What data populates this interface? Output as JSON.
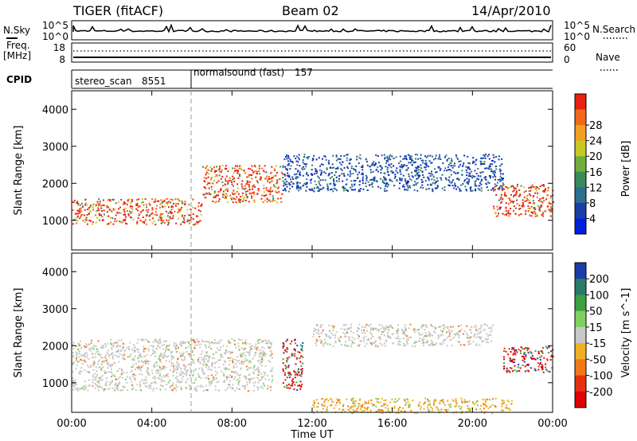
{
  "header": {
    "title": "TIGER (fitACF)",
    "beam": "Beam 02",
    "date": "14/Apr/2010"
  },
  "strips": {
    "nsky_label": "N.Sky",
    "nsky_ticks": [
      "10^5",
      "10^0"
    ],
    "nsearch_label": "N.Search",
    "nsearch_ticks": [
      "10^5",
      "10^0"
    ],
    "freq_label_line1": "Freq.",
    "freq_label_line2": "[MHz]",
    "freq_ticks": [
      "18",
      "8"
    ],
    "nave_label": "Nave",
    "nave_ticks": [
      "60",
      "0"
    ],
    "cpid_label": "CPID",
    "cpid_segments": [
      {
        "name": "stereo_scan",
        "id": "8551",
        "start_hour": 0
      },
      {
        "name": "normalsound (fast)",
        "id": "157",
        "start_hour": 6
      }
    ]
  },
  "chart_data": [
    {
      "type": "heatmap",
      "name": "power",
      "ylabel": "Slant Range [km]",
      "xlabel": "",
      "ylim": [
        200,
        4500
      ],
      "yticks": [
        "1000",
        "2000",
        "3000",
        "4000"
      ],
      "xlim_hours": [
        0,
        24
      ],
      "colorbar": {
        "label": "Power [dB]",
        "ticks": [
          "4",
          "8",
          "12",
          "16",
          "20",
          "24",
          "28"
        ],
        "colors": [
          "#0020e0",
          "#1a3ea8",
          "#2e6e90",
          "#3a8a5a",
          "#6fae3a",
          "#c8c820",
          "#f0a020",
          "#f06818",
          "#e82010"
        ]
      },
      "echo_regions": [
        {
          "t0": 0.0,
          "t1": 6.5,
          "r0": 900,
          "r1": 1600,
          "level": "high"
        },
        {
          "t0": 6.5,
          "t1": 10.5,
          "r0": 1500,
          "r1": 2500,
          "level": "high"
        },
        {
          "t0": 10.5,
          "t1": 21.5,
          "r0": 1800,
          "r1": 2800,
          "level": "low"
        },
        {
          "t0": 21.0,
          "t1": 24.0,
          "r0": 1100,
          "r1": 2000,
          "level": "high"
        }
      ]
    },
    {
      "type": "heatmap",
      "name": "velocity",
      "ylabel": "Slant Range [km]",
      "xlabel": "Time UT",
      "ylim": [
        200,
        4500
      ],
      "yticks": [
        "1000",
        "2000",
        "3000",
        "4000"
      ],
      "xticks": [
        "00:00",
        "04:00",
        "08:00",
        "12:00",
        "16:00",
        "20:00",
        "00:00"
      ],
      "colorbar": {
        "label": "Velocity [m s^-1]",
        "ticks": [
          "200",
          "100",
          "50",
          "15",
          "-15",
          "-50",
          "-100",
          "-200"
        ],
        "colors": [
          "#1a3ea8",
          "#2a7a6a",
          "#3aa040",
          "#80d060",
          "#c8c8c8",
          "#f0b020",
          "#f07818",
          "#e83010",
          "#e00000"
        ]
      },
      "echo_regions": [
        {
          "t0": 0.0,
          "t1": 10.0,
          "r0": 800,
          "r1": 2200,
          "level": "ground"
        },
        {
          "t0": 10.5,
          "t1": 11.5,
          "r0": 800,
          "r1": 2200,
          "level": "away"
        },
        {
          "t0": 12.0,
          "t1": 21.0,
          "r0": 2000,
          "r1": 2600,
          "level": "ground"
        },
        {
          "t0": 21.5,
          "t1": 24.0,
          "r0": 1300,
          "r1": 2000,
          "level": "away"
        },
        {
          "t0": 12.0,
          "t1": 22.0,
          "r0": 200,
          "r1": 600,
          "level": "toward"
        }
      ]
    }
  ]
}
